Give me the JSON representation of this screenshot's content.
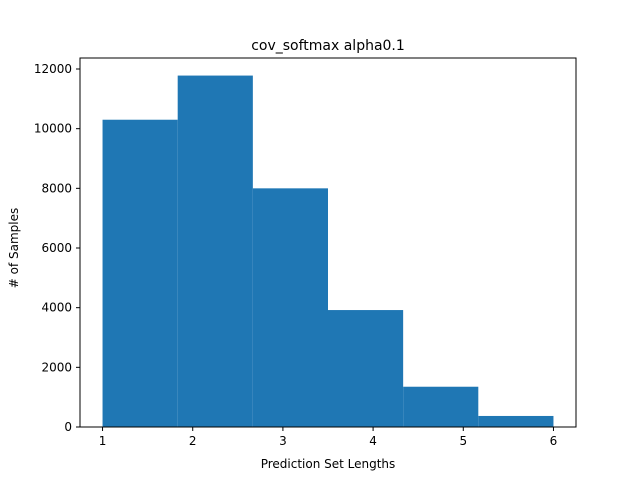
{
  "chart_data": {
    "type": "bar",
    "title": "cov_softmax alpha0.1",
    "xlabel": "Prediction Set Lengths",
    "ylabel": "# of Samples",
    "bins": [
      {
        "x0": 1.0,
        "x1": 1.8333,
        "value": 10300
      },
      {
        "x0": 1.8333,
        "x1": 2.6667,
        "value": 11780
      },
      {
        "x0": 2.6667,
        "x1": 3.5,
        "value": 8000
      },
      {
        "x0": 3.5,
        "x1": 4.3333,
        "value": 3920
      },
      {
        "x0": 4.3333,
        "x1": 5.1667,
        "value": 1350
      },
      {
        "x0": 5.1667,
        "x1": 6.0,
        "value": 370
      }
    ],
    "xticks": [
      1,
      2,
      3,
      4,
      5,
      6
    ],
    "yticks": [
      0,
      2000,
      4000,
      6000,
      8000,
      10000,
      12000
    ],
    "xlim": [
      0.75,
      6.25
    ],
    "ylim": [
      0,
      12369
    ],
    "bar_color": "#1f77b4",
    "grid": false
  }
}
